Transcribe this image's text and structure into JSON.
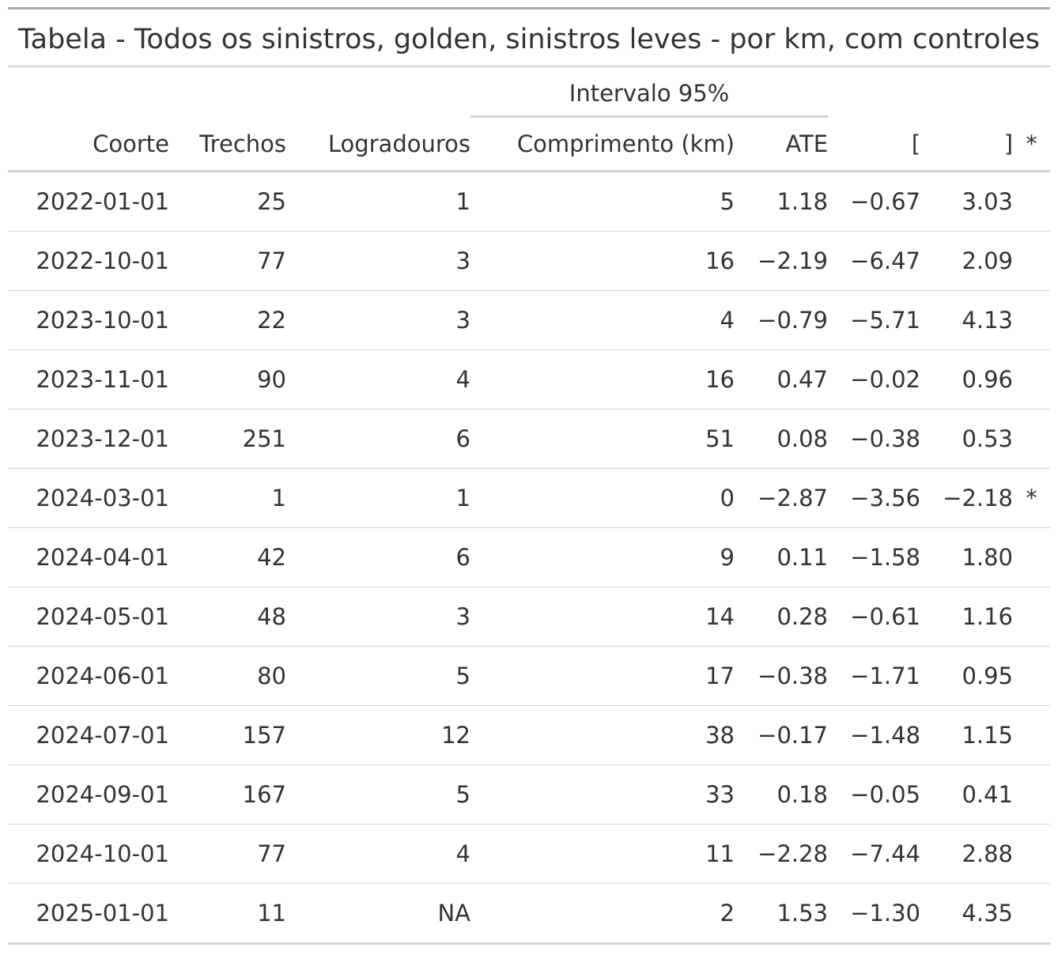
{
  "table": {
    "title": "Tabela - Todos os sinistros, golden, sinistros leves - por km, com controles",
    "spanner": "Intervalo 95%",
    "columns": {
      "coorte": "Coorte",
      "trechos": "Trechos",
      "logradouros": "Logradouros",
      "comprimento": "Comprimento (km)",
      "ate": "ATE",
      "lower": "[",
      "upper": "]",
      "sig": "*"
    },
    "rows": [
      {
        "coorte": "2022-01-01",
        "trechos": "25",
        "logradouros": "1",
        "comprimento": "5",
        "ate": "1.18",
        "lower": "−0.67",
        "upper": "3.03",
        "sig": ""
      },
      {
        "coorte": "2022-10-01",
        "trechos": "77",
        "logradouros": "3",
        "comprimento": "16",
        "ate": "−2.19",
        "lower": "−6.47",
        "upper": "2.09",
        "sig": ""
      },
      {
        "coorte": "2023-10-01",
        "trechos": "22",
        "logradouros": "3",
        "comprimento": "4",
        "ate": "−0.79",
        "lower": "−5.71",
        "upper": "4.13",
        "sig": ""
      },
      {
        "coorte": "2023-11-01",
        "trechos": "90",
        "logradouros": "4",
        "comprimento": "16",
        "ate": "0.47",
        "lower": "−0.02",
        "upper": "0.96",
        "sig": ""
      },
      {
        "coorte": "2023-12-01",
        "trechos": "251",
        "logradouros": "6",
        "comprimento": "51",
        "ate": "0.08",
        "lower": "−0.38",
        "upper": "0.53",
        "sig": ""
      },
      {
        "coorte": "2024-03-01",
        "trechos": "1",
        "logradouros": "1",
        "comprimento": "0",
        "ate": "−2.87",
        "lower": "−3.56",
        "upper": "−2.18",
        "sig": "*"
      },
      {
        "coorte": "2024-04-01",
        "trechos": "42",
        "logradouros": "6",
        "comprimento": "9",
        "ate": "0.11",
        "lower": "−1.58",
        "upper": "1.80",
        "sig": ""
      },
      {
        "coorte": "2024-05-01",
        "trechos": "48",
        "logradouros": "3",
        "comprimento": "14",
        "ate": "0.28",
        "lower": "−0.61",
        "upper": "1.16",
        "sig": ""
      },
      {
        "coorte": "2024-06-01",
        "trechos": "80",
        "logradouros": "5",
        "comprimento": "17",
        "ate": "−0.38",
        "lower": "−1.71",
        "upper": "0.95",
        "sig": ""
      },
      {
        "coorte": "2024-07-01",
        "trechos": "157",
        "logradouros": "12",
        "comprimento": "38",
        "ate": "−0.17",
        "lower": "−1.48",
        "upper": "1.15",
        "sig": ""
      },
      {
        "coorte": "2024-09-01",
        "trechos": "167",
        "logradouros": "5",
        "comprimento": "33",
        "ate": "0.18",
        "lower": "−0.05",
        "upper": "0.41",
        "sig": ""
      },
      {
        "coorte": "2024-10-01",
        "trechos": "77",
        "logradouros": "4",
        "comprimento": "11",
        "ate": "−2.28",
        "lower": "−7.44",
        "upper": "2.88",
        "sig": ""
      },
      {
        "coorte": "2025-01-01",
        "trechos": "11",
        "logradouros": "NA",
        "comprimento": "2",
        "ate": "1.53",
        "lower": "−1.30",
        "upper": "4.35",
        "sig": ""
      }
    ]
  }
}
